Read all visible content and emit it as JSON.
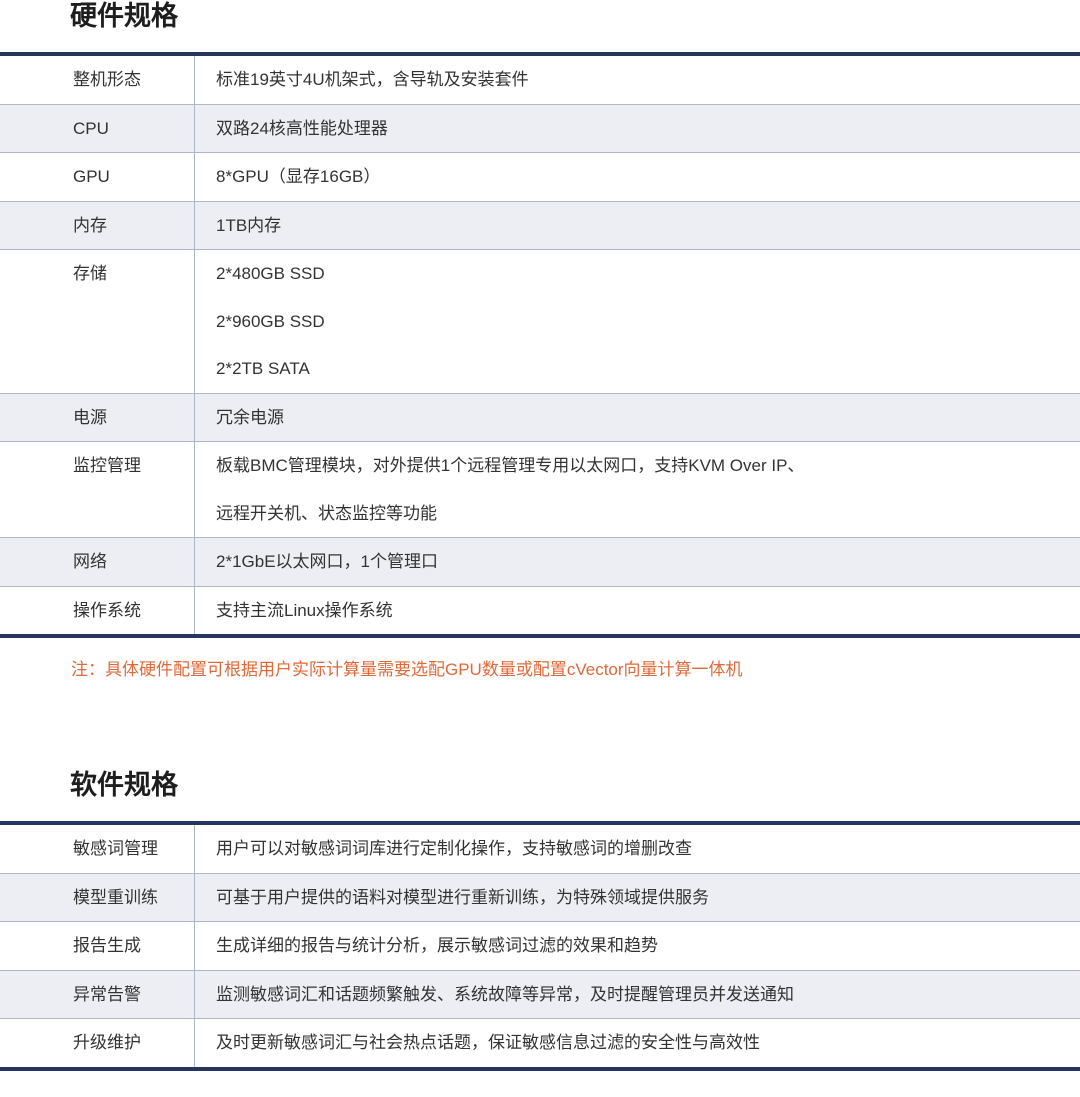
{
  "hardware": {
    "title": "硬件规格",
    "rows": [
      {
        "label": "整机形态",
        "values": [
          "标准19英寸4U机架式，含导轨及安装套件"
        ]
      },
      {
        "label": "CPU",
        "values": [
          "双路24核高性能处理器"
        ]
      },
      {
        "label": "GPU",
        "values": [
          "8*GPU（显存16GB）"
        ]
      },
      {
        "label": "内存",
        "values": [
          "1TB内存"
        ]
      },
      {
        "label": "存储",
        "values": [
          "2*480GB SSD",
          "2*960GB SSD",
          "2*2TB SATA"
        ]
      },
      {
        "label": "电源",
        "values": [
          "冗余电源"
        ]
      },
      {
        "label": "监控管理",
        "values": [
          "板载BMC管理模块，对外提供1个远程管理专用以太网口，支持KVM Over IP、",
          "远程开关机、状态监控等功能"
        ]
      },
      {
        "label": "网络",
        "values": [
          "2*1GbE以太网口，1个管理口"
        ]
      },
      {
        "label": "操作系统",
        "values": [
          "支持主流Linux操作系统"
        ]
      }
    ],
    "note": "注：具体硬件配置可根据用户实际计算量需要选配GPU数量或配置cVector向量计算一体机"
  },
  "software": {
    "title": "软件规格",
    "rows": [
      {
        "label": "敏感词管理",
        "values": [
          "用户可以对敏感词词库进行定制化操作，支持敏感词的增删改查"
        ]
      },
      {
        "label": "模型重训练",
        "values": [
          "可基于用户提供的语料对模型进行重新训练，为特殊领域提供服务"
        ]
      },
      {
        "label": "报告生成",
        "values": [
          "生成详细的报告与统计分析，展示敏感词过滤的效果和趋势"
        ]
      },
      {
        "label": "异常告警",
        "values": [
          "监测敏感词汇和话题频繁触发、系统故障等异常，及时提醒管理员并发送通知"
        ]
      },
      {
        "label": "升级维护",
        "values": [
          "及时更新敏感词汇与社会热点话题，保证敏感信息过滤的安全性与高效性"
        ]
      }
    ]
  },
  "colors": {
    "accent": "#27365f",
    "alt_row": "#eceef3",
    "note": "#e0693a"
  }
}
